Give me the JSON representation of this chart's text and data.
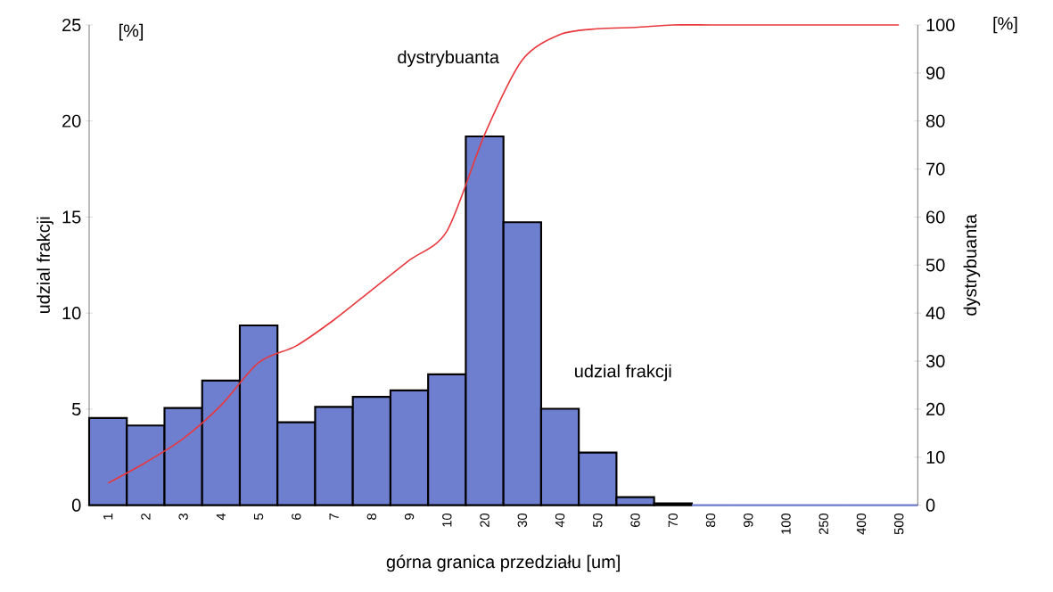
{
  "chart_data": {
    "type": "bar",
    "xlabel": "górna granica przedziału [um]",
    "ylabel": "udzial frakcji",
    "y2label": "dystrybuanta",
    "categories": [
      "1",
      "2",
      "3",
      "4",
      "5",
      "6",
      "7",
      "8",
      "9",
      "10",
      "20",
      "30",
      "40",
      "50",
      "60",
      "70",
      "80",
      "90",
      "100",
      "250",
      "400",
      "500"
    ],
    "series": [
      {
        "name": "udzial frakcji",
        "color": "#6f7fd0",
        "values": [
          4.54,
          4.15,
          5.06,
          6.49,
          9.36,
          4.32,
          5.12,
          5.64,
          5.98,
          6.81,
          19.2,
          14.73,
          5.02,
          2.74,
          0.42,
          0.1,
          0,
          0,
          0,
          0,
          0,
          0
        ]
      },
      {
        "name": "dystrybuanta",
        "type": "line",
        "axis": "y2",
        "color": "#e8383d",
        "values": [
          4.6,
          8.9,
          13.9,
          20.8,
          29.7,
          33.2,
          38.6,
          44.8,
          51,
          57.1,
          77.2,
          92.7,
          98,
          99.2,
          99.5,
          100,
          100,
          100,
          100,
          100,
          100,
          100
        ]
      }
    ],
    "ylim": [
      0,
      25
    ],
    "yticks": [
      0,
      5,
      10,
      15,
      20,
      25
    ],
    "y2lim": [
      0,
      100
    ],
    "y2ticks": [
      0,
      10,
      20,
      30,
      40,
      50,
      60,
      70,
      80,
      90,
      100
    ],
    "marker": "none",
    "line_style": "solid",
    "annotations": [
      "[%]",
      "[%]"
    ]
  }
}
